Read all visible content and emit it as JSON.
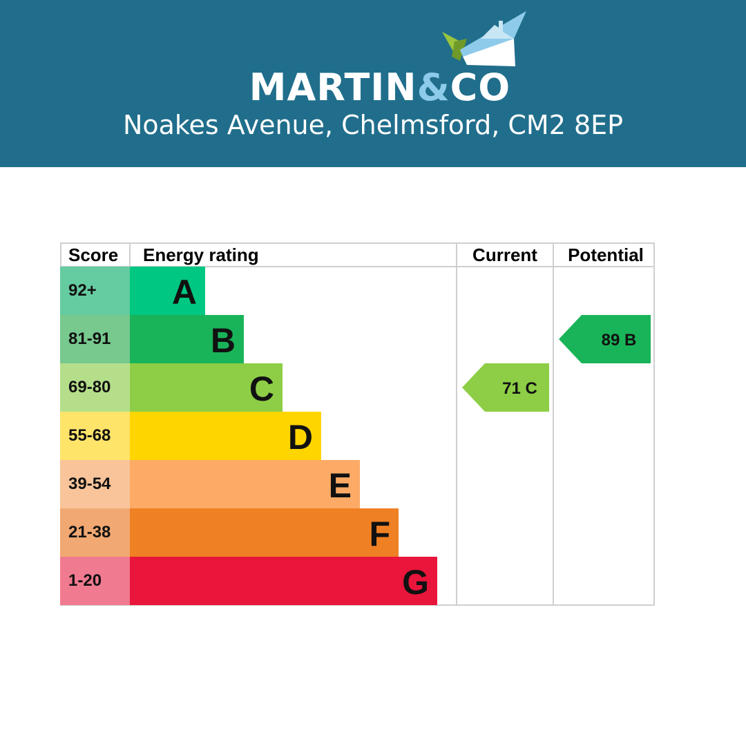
{
  "brand": {
    "name_left": "MARTIN",
    "name_amp": "&",
    "name_right": "CO"
  },
  "address": "Noakes Avenue, Chelmsford, CM2 8EP",
  "chart_data": {
    "type": "table",
    "headers": {
      "score": "Score",
      "rating": "Energy rating",
      "current": "Current",
      "potential": "Potential"
    },
    "bands": [
      {
        "band": "A",
        "score": "92+",
        "color": "#00c781",
        "score_bg": "#65cba0"
      },
      {
        "band": "B",
        "score": "81-91",
        "color": "#19b459",
        "score_bg": "#77c98e"
      },
      {
        "band": "C",
        "score": "69-80",
        "color": "#8dce46",
        "score_bg": "#b5de8a"
      },
      {
        "band": "D",
        "score": "55-68",
        "color": "#ffd500",
        "score_bg": "#ffe46a"
      },
      {
        "band": "E",
        "score": "39-54",
        "color": "#fcaa65",
        "score_bg": "#f9c49a"
      },
      {
        "band": "F",
        "score": "21-38",
        "color": "#ef8023",
        "score_bg": "#f1a872"
      },
      {
        "band": "G",
        "score": "1-20",
        "color": "#e9153b",
        "score_bg": "#f07a8f"
      }
    ],
    "current": {
      "value": 71,
      "band": "C",
      "label": "71  C"
    },
    "potential": {
      "value": 89,
      "band": "B",
      "label": "89  B"
    }
  }
}
